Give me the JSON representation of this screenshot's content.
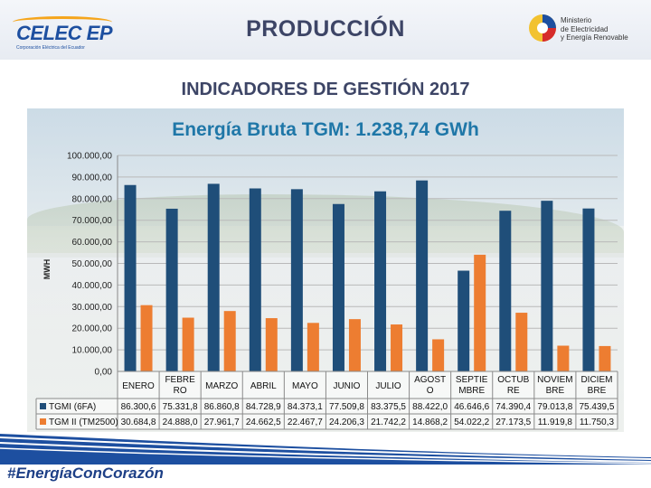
{
  "header": {
    "logo_left_text": "CELEC EP",
    "logo_left_subtext": "Corporación Eléctrica del Ecuador",
    "title": "PRODUCCIÓN",
    "ministry_line1": "Ministerio",
    "ministry_line2": "de Electricidad",
    "ministry_line3": "y Energía Renovable"
  },
  "subtitle": "INDICADORES DE GESTIÓN 2017",
  "footer": {
    "hashtag": "#EnergíaConCorazón"
  },
  "colors": {
    "series1": "#1f4e79",
    "series2": "#ed7d31",
    "title": "#3d4566",
    "chart_title": "#1f77a8"
  },
  "chart_data": {
    "type": "bar",
    "title": "Energía Bruta TGM: 1.238,74 GWh",
    "ylabel": "MWH",
    "xlabel": "",
    "ylim": [
      0,
      100000
    ],
    "ytick_step": 10000,
    "ytick_labels": [
      "0,00",
      "10.000,00",
      "20.000,00",
      "30.000,00",
      "40.000,00",
      "50.000,00",
      "60.000,00",
      "70.000,00",
      "80.000,00",
      "90.000,00",
      "100.000,00"
    ],
    "grid": true,
    "categories": [
      "ENERO",
      "FEBRERO",
      "MARZO",
      "ABRIL",
      "MAYO",
      "JUNIO",
      "JULIO",
      "AGOSTO",
      "SEPTIEMBRE",
      "OCTUBRE",
      "NOVIEMBRE",
      "DICIEMBRE"
    ],
    "category_lines": [
      [
        "ENERO"
      ],
      [
        "FEBRE",
        "RO"
      ],
      [
        "MARZO"
      ],
      [
        "ABRIL"
      ],
      [
        "MAYO"
      ],
      [
        "JUNIO"
      ],
      [
        "JULIO"
      ],
      [
        "AGOST",
        "O"
      ],
      [
        "SEPTIE",
        "MBRE"
      ],
      [
        "OCTUB",
        "RE"
      ],
      [
        "NOVIEM",
        "BRE"
      ],
      [
        "DICIEM",
        "BRE"
      ]
    ],
    "series": [
      {
        "name": "TGMI (6FA)",
        "color": "#1f4e79",
        "values": [
          86300.6,
          75331.8,
          86860.8,
          84728.9,
          84373.1,
          77509.8,
          83375.5,
          88422.0,
          46646.6,
          74390.4,
          79013.8,
          75439.5
        ],
        "labels": [
          "86.300,6",
          "75.331,8",
          "86.860,8",
          "84.728,9",
          "84.373,1",
          "77.509,8",
          "83.375,5",
          "88.422,0",
          "46.646,6",
          "74.390,4",
          "79.013,8",
          "75.439,5"
        ]
      },
      {
        "name": "TGM II (TM2500)",
        "color": "#ed7d31",
        "values": [
          30684.8,
          24888.0,
          27961.7,
          24662.5,
          22467.7,
          24206.3,
          21742.2,
          14868.2,
          54022.2,
          27173.5,
          11919.8,
          11750.3
        ],
        "labels": [
          "30.684,8",
          "24.888,0",
          "27.961,7",
          "24.662,5",
          "22.467,7",
          "24.206,3",
          "21.742,2",
          "14.868,2",
          "54.022,2",
          "27.173,5",
          "11.919,8",
          "11.750,3"
        ]
      }
    ],
    "data_table": true
  }
}
